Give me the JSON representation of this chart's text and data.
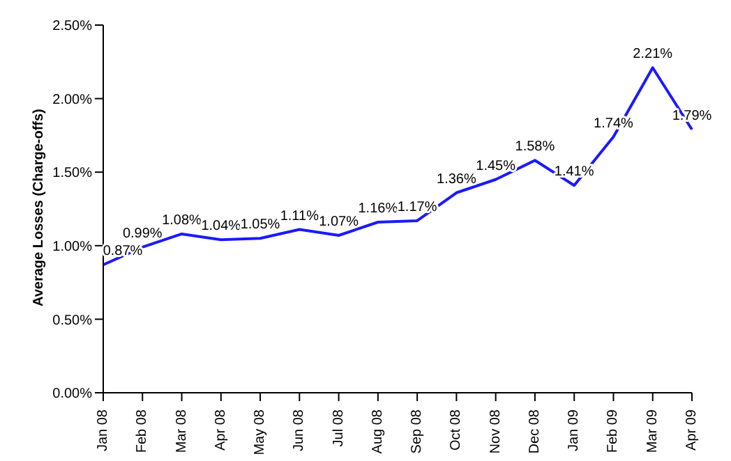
{
  "chart_data": {
    "type": "line",
    "ylabel": "Average Losses (Charge-offs)",
    "categories": [
      "Jan 08",
      "Feb 08",
      "Mar 08",
      "Apr 08",
      "May 08",
      "Jun 08",
      "Jul 08",
      "Aug 08",
      "Sep 08",
      "Oct 08",
      "Nov 08",
      "Dec 08",
      "Jan 09",
      "Feb 09",
      "Mar 09",
      "Apr 09"
    ],
    "series": [
      {
        "color": "#1a1aff",
        "values": [
          0.87,
          0.99,
          1.08,
          1.04,
          1.05,
          1.11,
          1.07,
          1.16,
          1.17,
          1.36,
          1.45,
          1.58,
          1.41,
          1.74,
          2.21,
          1.79
        ],
        "value_labels": [
          "0.87%",
          "0.99%",
          "1.08%",
          "1.04%",
          "1.05%",
          "1.11%",
          "1.07%",
          "1.16%",
          "1.17%",
          "1.36%",
          "1.45%",
          "1.58%",
          "1.41%",
          "1.74%",
          "2.21%",
          "1.79%"
        ]
      }
    ],
    "ylim": [
      0,
      2.5
    ],
    "yticks": [
      {
        "value": 0,
        "label": "0.00%"
      },
      {
        "value": 0.5,
        "label": "0.50%"
      },
      {
        "value": 1,
        "label": "1.00%"
      },
      {
        "value": 1.5,
        "label": "1.50%"
      },
      {
        "value": 2,
        "label": "2.00%"
      },
      {
        "value": 2.5,
        "label": "2.50%"
      }
    ],
    "grid": false,
    "legend": false,
    "marker": "none",
    "line_style": "solid"
  }
}
